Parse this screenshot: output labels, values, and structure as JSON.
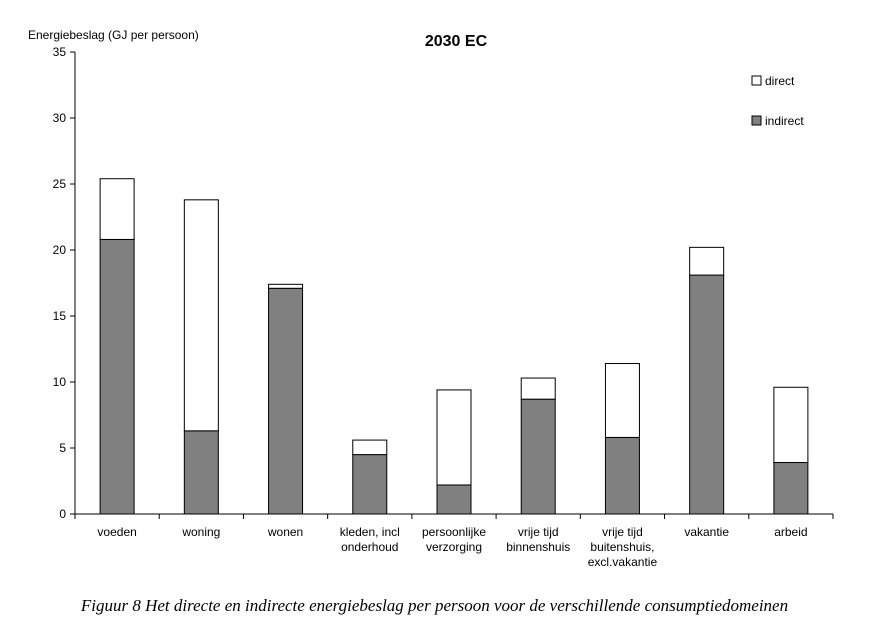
{
  "chart_data": {
    "type": "bar",
    "stacked": true,
    "title": "2030 EC",
    "ylabel": "Energiebeslag (GJ per persoon)",
    "xlabel": "",
    "ylim": [
      0,
      35
    ],
    "yticks": [
      0,
      5,
      10,
      15,
      20,
      25,
      30,
      35
    ],
    "grid": false,
    "legend_position": "top-right",
    "categories": [
      [
        "voeden"
      ],
      [
        "woning"
      ],
      [
        "wonen"
      ],
      [
        "kleden, incl",
        "onderhoud"
      ],
      [
        "persoonlijke",
        "verzorging"
      ],
      [
        "vrije tijd",
        "binnenshuis"
      ],
      [
        "vrije tijd",
        "buitenshuis,",
        "excl.vakantie"
      ],
      [
        "vakantie"
      ],
      [
        "arbeid"
      ]
    ],
    "series": [
      {
        "name": "indirect",
        "color": "#808080",
        "values": [
          20.8,
          6.3,
          17.1,
          4.5,
          2.2,
          8.7,
          5.8,
          18.1,
          3.9
        ]
      },
      {
        "name": "direct",
        "color": "#ffffff",
        "values": [
          4.6,
          17.5,
          0.3,
          1.1,
          7.2,
          1.6,
          5.6,
          2.1,
          5.7
        ]
      }
    ]
  },
  "caption": "Figuur 8 Het directe en indirecte energiebeslag per persoon voor de verschillende consumptiedomeinen"
}
